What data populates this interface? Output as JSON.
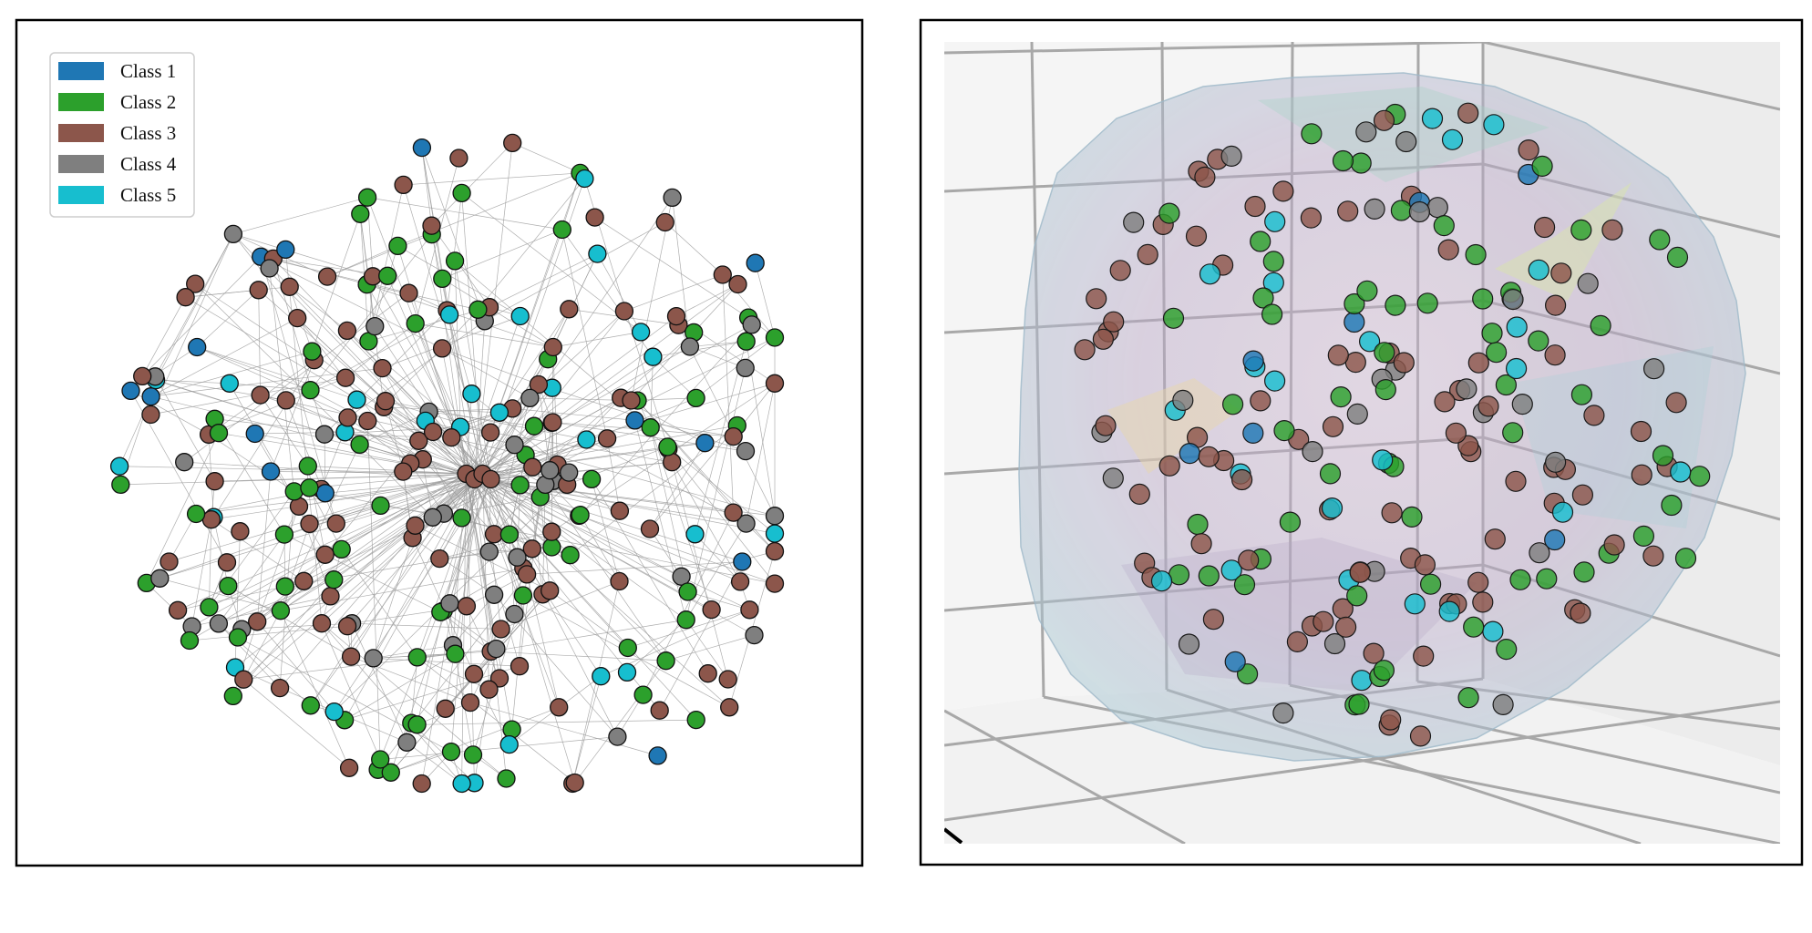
{
  "chart_data": [
    {
      "type": "scatter",
      "title": "",
      "xlabel": "",
      "ylabel": "",
      "grid": false,
      "legend_placement": "top-left",
      "legend": [
        {
          "name": "Class 1",
          "color": "#1f77b4"
        },
        {
          "name": "Class 2",
          "color": "#2ca02c"
        },
        {
          "name": "Class 3",
          "color": "#8c564b"
        },
        {
          "name": "Class 4",
          "color": "#7f7f7f"
        },
        {
          "name": "Class 5",
          "color": "#17becf"
        }
      ],
      "class_counts": {
        "Class 1": 14,
        "Class 2": 78,
        "Class 3": 116,
        "Class 4": 40,
        "Class 5": 27
      }
    },
    {
      "type": "scatter",
      "title": "",
      "xlabel": "",
      "ylabel": "",
      "zlabel": "",
      "grid": true,
      "projection": "3d",
      "hull_surface": true,
      "class_counts": {
        "Class 1": 9,
        "Class 2": 64,
        "Class 3": 88,
        "Class 4": 27,
        "Class 5": 25
      }
    }
  ]
}
